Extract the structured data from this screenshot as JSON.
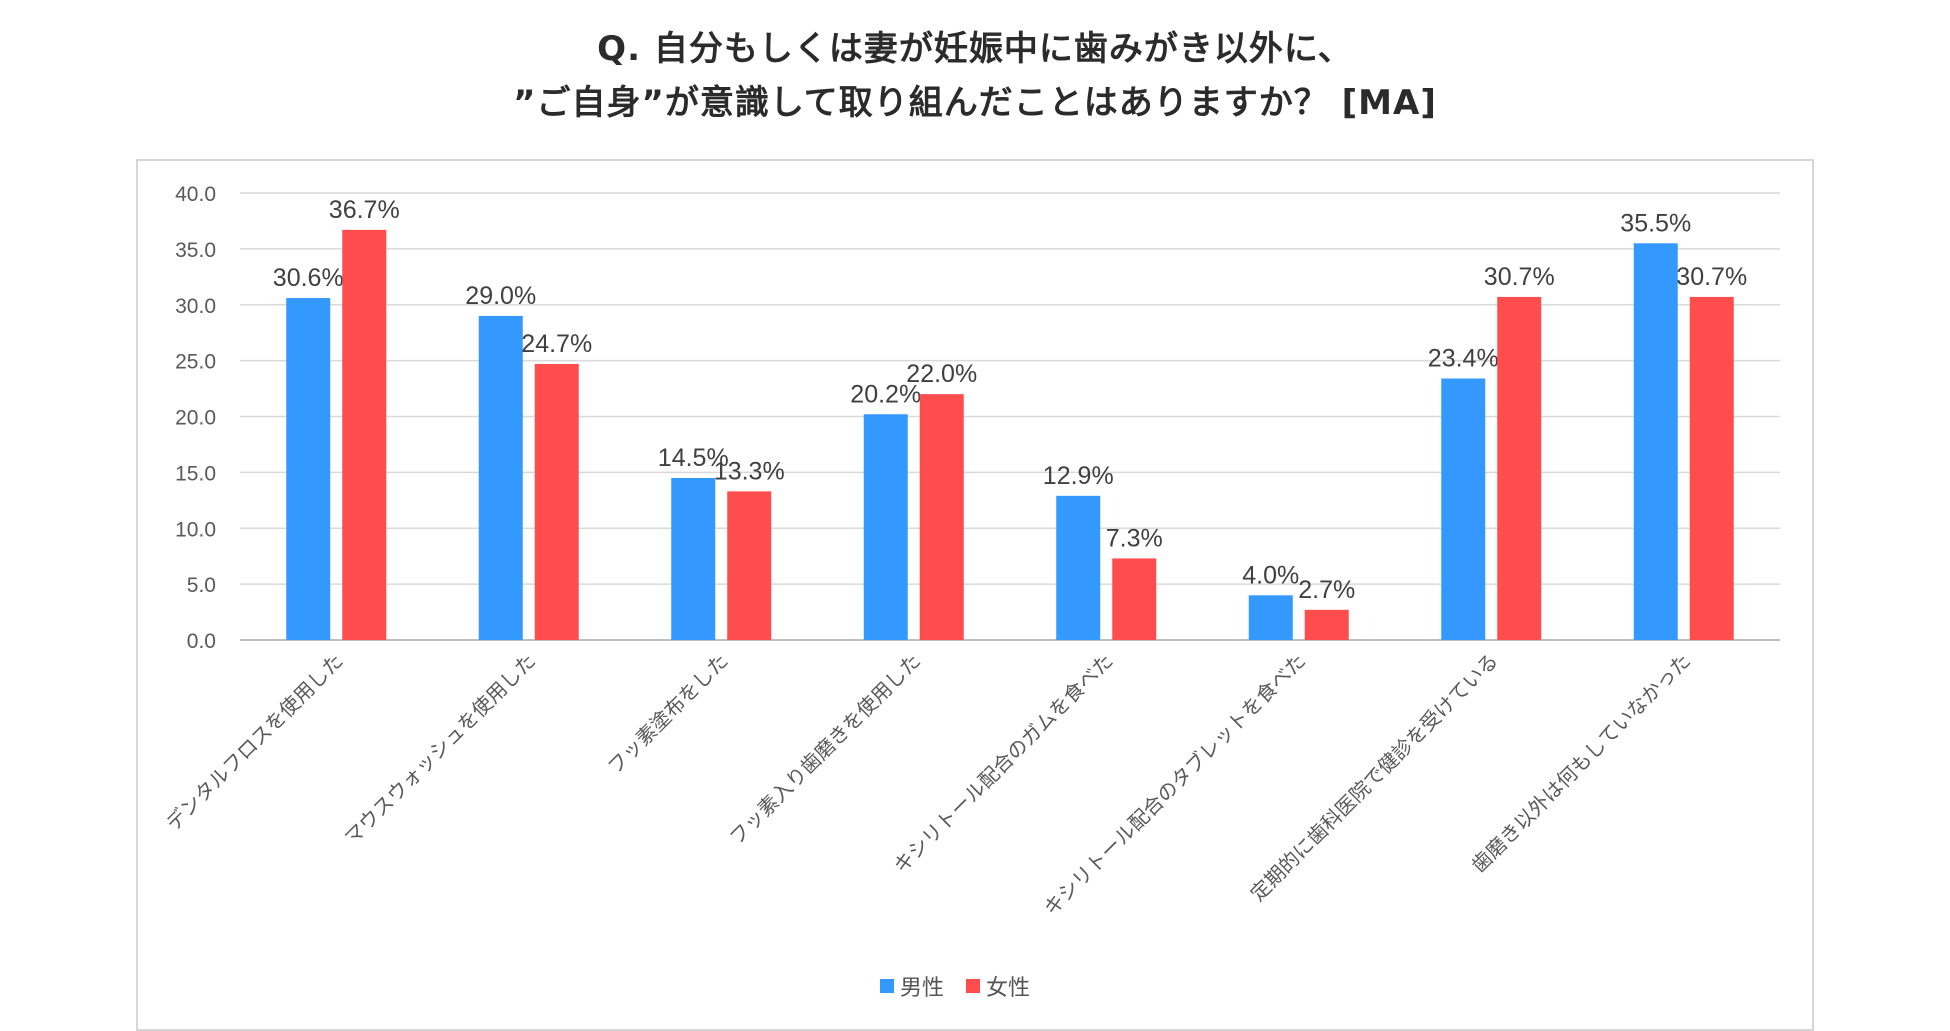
{
  "chart_data": {
    "type": "bar",
    "title": [
      "Q. 自分もしくは妻が妊娠中に歯みがき以外に、",
      "”ご自身”が意識して取り組んだことはありますか？ [MA]"
    ],
    "categories": [
      "デンタルフロスを使用した",
      "マウスウォッシュを使用した",
      "フッ素塗布をした",
      "フッ素入り歯磨きを使用した",
      "キシリトール配合のガムを食べた",
      "キシリトール配合のタブレットを食べた",
      "定期的に歯科医院で健診を受けている",
      "歯磨き以外は何もしていなかった"
    ],
    "series": [
      {
        "name": "男性",
        "color": "#3399ff",
        "values": [
          30.6,
          29.0,
          14.5,
          20.2,
          12.9,
          4.0,
          23.4,
          35.5
        ],
        "labels": [
          "30.6%",
          "29.0%",
          "14.5%",
          "20.2%",
          "12.9%",
          "4.0%",
          "23.4%",
          "35.5%"
        ]
      },
      {
        "name": "女性",
        "color": "#ff4d4d",
        "values": [
          36.7,
          24.7,
          13.3,
          22.0,
          7.3,
          2.7,
          30.7,
          30.7
        ],
        "labels": [
          "36.7%",
          "24.7%",
          "13.3%",
          "22.0%",
          "7.3%",
          "2.7%",
          "30.7%",
          "30.7%"
        ]
      }
    ],
    "ylim": [
      0,
      40
    ],
    "yticks": [
      "0.0",
      "5.0",
      "10.0",
      "15.0",
      "20.0",
      "25.0",
      "30.0",
      "35.0",
      "40.0"
    ],
    "ytick_values": [
      0,
      5,
      10,
      15,
      20,
      25,
      30,
      35,
      40
    ],
    "xlabel": "",
    "ylabel": "",
    "grid": true,
    "legend": "bottom-center"
  }
}
